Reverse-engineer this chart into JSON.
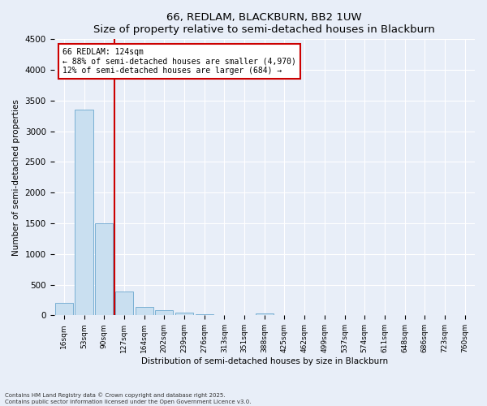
{
  "title": "66, REDLAM, BLACKBURN, BB2 1UW",
  "subtitle": "Size of property relative to semi-detached houses in Blackburn",
  "xlabel": "Distribution of semi-detached houses by size in Blackburn",
  "ylabel": "Number of semi-detached properties",
  "footnote1": "Contains HM Land Registry data © Crown copyright and database right 2025.",
  "footnote2": "Contains public sector information licensed under the Open Government Licence v3.0.",
  "bar_labels": [
    "16sqm",
    "53sqm",
    "90sqm",
    "127sqm",
    "164sqm",
    "202sqm",
    "239sqm",
    "276sqm",
    "313sqm",
    "351sqm",
    "388sqm",
    "425sqm",
    "462sqm",
    "499sqm",
    "537sqm",
    "574sqm",
    "611sqm",
    "648sqm",
    "686sqm",
    "723sqm",
    "760sqm"
  ],
  "bar_values": [
    200,
    3350,
    1500,
    390,
    140,
    80,
    40,
    20,
    10,
    5,
    30,
    0,
    0,
    0,
    0,
    0,
    0,
    0,
    0,
    0,
    0
  ],
  "bar_color": "#c9dff0",
  "bar_edge_color": "#7ab0d4",
  "vline_color": "#cc0000",
  "annotation_title": "66 REDLAM: 124sqm",
  "annotation_line1": "← 88% of semi-detached houses are smaller (4,970)",
  "annotation_line2": "12% of semi-detached houses are larger (684) →",
  "annotation_box_color": "#cc0000",
  "ylim": [
    0,
    4500
  ],
  "yticks": [
    0,
    500,
    1000,
    1500,
    2000,
    2500,
    3000,
    3500,
    4000,
    4500
  ],
  "background_color": "#e8eef8",
  "grid_color": "#ffffff"
}
